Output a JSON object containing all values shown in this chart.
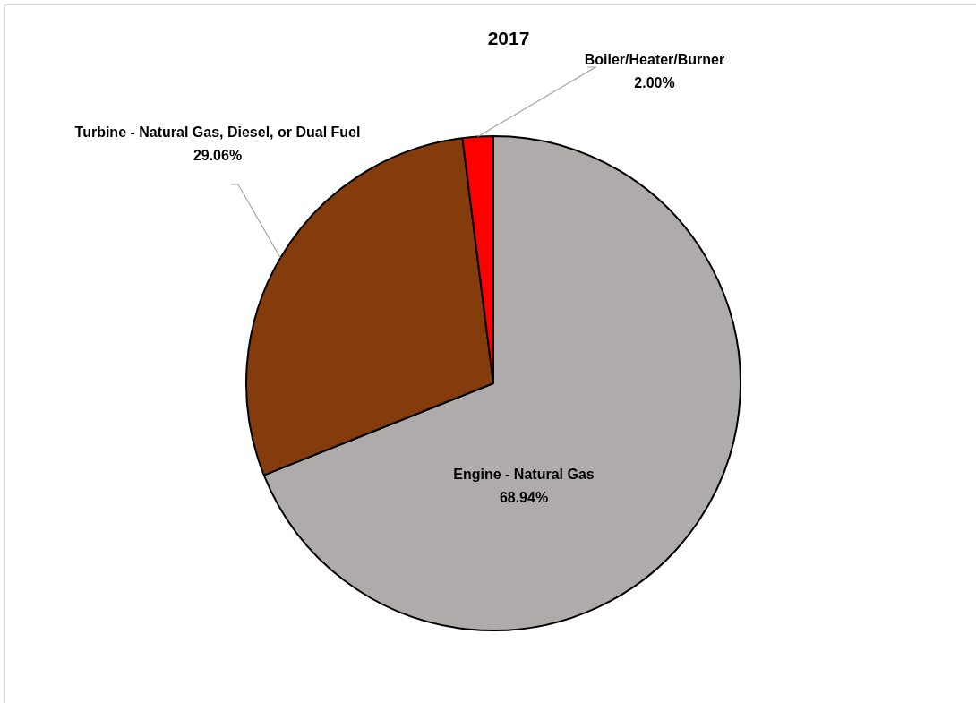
{
  "chart_data": {
    "type": "pie",
    "title": "2017",
    "categories": [
      "Engine - Natural Gas",
      "Turbine - Natural Gas, Diesel, or Dual Fuel",
      "Boiler/Heater/Burner"
    ],
    "values": [
      68.94,
      29.06,
      2.0
    ],
    "value_labels": [
      "68.94%",
      "29.06%",
      "2.00%"
    ],
    "colors": [
      "#afabab",
      "#843c0c",
      "#ff0000"
    ]
  }
}
